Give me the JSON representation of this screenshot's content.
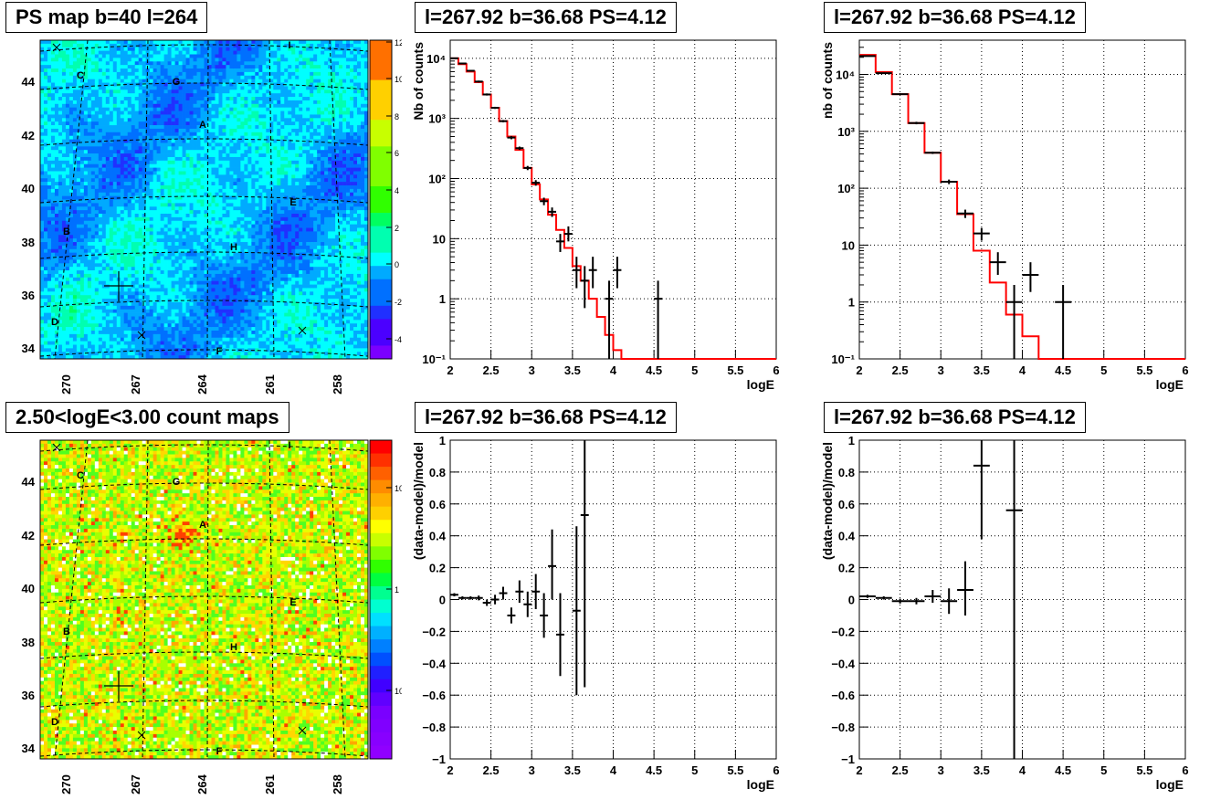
{
  "map_panels": [
    {
      "title": "PS map b=40 l=264",
      "scheme": "ps",
      "xticks": [
        "270",
        "267",
        "264",
        "261",
        "258"
      ],
      "yticks": [
        "44",
        "42",
        "40",
        "38",
        "36",
        "34"
      ],
      "colorbar_ticks": [
        "12",
        "10",
        "8",
        "6",
        "4",
        "2",
        "0",
        "-2",
        "-4"
      ],
      "zrange": [
        -5,
        12
      ],
      "labels": [
        "C",
        "G",
        "A",
        "E",
        "B",
        "H",
        "D",
        "F",
        "I"
      ],
      "colors": {
        "background": "#00ffff",
        "hot": "#ff0000"
      }
    },
    {
      "title": "2.50<logE<3.00 count maps",
      "scheme": "count",
      "xticks": [
        "270",
        "267",
        "264",
        "261",
        "258"
      ],
      "yticks": [
        "44",
        "42",
        "40",
        "38",
        "36",
        "34"
      ],
      "colorbar_ticks": [
        "10",
        "1",
        "10⁻¹"
      ],
      "zscale": "log",
      "labels": [
        "C",
        "G",
        "A",
        "E",
        "B",
        "H",
        "D",
        "F",
        "I"
      ],
      "colors": {
        "background": "#ffd700",
        "hot": "#ff0000"
      }
    }
  ],
  "chart_data": [
    {
      "type": "line",
      "panel": "spectrum-fine",
      "title": "l=267.92 b=36.68 PS=4.12",
      "xlabel": "logE",
      "ylabel": "Nb of counts",
      "xlim": [
        2,
        6
      ],
      "ylim": [
        0.1,
        20000
      ],
      "yscale": "log",
      "xticks": [
        "2",
        "2.5",
        "3",
        "3.5",
        "4",
        "4.5",
        "5",
        "5.5",
        "6"
      ],
      "yticks": [
        "10⁻¹",
        "1",
        "10",
        "10²",
        "10³",
        "10⁴"
      ],
      "grid": true,
      "model_step": {
        "edges": [
          2.0,
          2.1,
          2.2,
          2.3,
          2.4,
          2.5,
          2.6,
          2.7,
          2.8,
          2.9,
          3.0,
          3.1,
          3.2,
          3.3,
          3.4,
          3.5,
          3.6,
          3.7,
          3.8,
          3.9,
          4.0,
          4.1,
          4.2,
          6.0
        ],
        "values": [
          10000,
          8000,
          6000,
          4000,
          2500,
          1500,
          900,
          500,
          300,
          150,
          80,
          45,
          25,
          14,
          7,
          3.5,
          2,
          1,
          0.5,
          0.25,
          0.14,
          0.1,
          0.1
        ]
      },
      "data_points": [
        {
          "x": 2.05,
          "y": 10000,
          "ylo": 9800,
          "yhi": 10200
        },
        {
          "x": 2.15,
          "y": 8200,
          "ylo": 8000,
          "yhi": 8400
        },
        {
          "x": 2.25,
          "y": 6200,
          "ylo": 6000,
          "yhi": 6400
        },
        {
          "x": 2.35,
          "y": 4100,
          "ylo": 3950,
          "yhi": 4250
        },
        {
          "x": 2.45,
          "y": 2500,
          "ylo": 2400,
          "yhi": 2600
        },
        {
          "x": 2.55,
          "y": 1500,
          "ylo": 1440,
          "yhi": 1560
        },
        {
          "x": 2.65,
          "y": 900,
          "ylo": 860,
          "yhi": 940
        },
        {
          "x": 2.75,
          "y": 480,
          "ylo": 450,
          "yhi": 510
        },
        {
          "x": 2.85,
          "y": 320,
          "ylo": 300,
          "yhi": 340
        },
        {
          "x": 2.95,
          "y": 150,
          "ylo": 138,
          "yhi": 162
        },
        {
          "x": 3.05,
          "y": 85,
          "ylo": 76,
          "yhi": 94
        },
        {
          "x": 3.15,
          "y": 42,
          "ylo": 36,
          "yhi": 48
        },
        {
          "x": 3.25,
          "y": 28,
          "ylo": 23,
          "yhi": 33
        },
        {
          "x": 3.35,
          "y": 9,
          "ylo": 6,
          "yhi": 12
        },
        {
          "x": 3.45,
          "y": 12,
          "ylo": 9,
          "yhi": 16
        },
        {
          "x": 3.55,
          "y": 3,
          "ylo": 1.5,
          "yhi": 5
        },
        {
          "x": 3.65,
          "y": 2,
          "ylo": 0.7,
          "yhi": 3.5
        },
        {
          "x": 3.75,
          "y": 3,
          "ylo": 1.5,
          "yhi": 5
        },
        {
          "x": 3.95,
          "y": 1,
          "ylo": 0.1,
          "yhi": 2
        },
        {
          "x": 4.05,
          "y": 3,
          "ylo": 1.5,
          "yhi": 5
        },
        {
          "x": 4.55,
          "y": 1,
          "ylo": 0.1,
          "yhi": 2
        }
      ]
    },
    {
      "type": "line",
      "panel": "spectrum-coarse",
      "title": "l=267.92 b=36.68 PS=4.12",
      "xlabel": "logE",
      "ylabel": "nb of counts",
      "xlim": [
        2,
        6
      ],
      "ylim": [
        0.1,
        40000
      ],
      "yscale": "log",
      "xticks": [
        "2",
        "2.5",
        "3",
        "3.5",
        "4",
        "4.5",
        "5",
        "5.5",
        "6"
      ],
      "yticks": [
        "10⁻¹",
        "1",
        "10",
        "10²",
        "10³",
        "10⁴"
      ],
      "grid": true,
      "model_step": {
        "edges": [
          2.0,
          2.2,
          2.4,
          2.6,
          2.8,
          3.0,
          3.2,
          3.4,
          3.6,
          3.8,
          4.0,
          4.2,
          6.0
        ],
        "values": [
          22000,
          11000,
          4500,
          1400,
          420,
          130,
          35,
          8,
          2.2,
          0.6,
          0.25,
          0.1
        ]
      },
      "data_points": [
        {
          "x": 2.1,
          "y": 21000,
          "ylo": 20700,
          "yhi": 21300
        },
        {
          "x": 2.3,
          "y": 10500,
          "ylo": 10300,
          "yhi": 10700
        },
        {
          "x": 2.5,
          "y": 4500,
          "ylo": 4350,
          "yhi": 4650
        },
        {
          "x": 2.7,
          "y": 1400,
          "ylo": 1330,
          "yhi": 1470
        },
        {
          "x": 2.9,
          "y": 420,
          "ylo": 400,
          "yhi": 440
        },
        {
          "x": 3.1,
          "y": 130,
          "ylo": 118,
          "yhi": 142
        },
        {
          "x": 3.3,
          "y": 36,
          "ylo": 30,
          "yhi": 42
        },
        {
          "x": 3.5,
          "y": 16,
          "ylo": 12,
          "yhi": 20
        },
        {
          "x": 3.7,
          "y": 5,
          "ylo": 3,
          "yhi": 7.5
        },
        {
          "x": 3.9,
          "y": 1,
          "ylo": 0.1,
          "yhi": 2
        },
        {
          "x": 4.1,
          "y": 3,
          "ylo": 1.5,
          "yhi": 5
        },
        {
          "x": 4.5,
          "y": 1,
          "ylo": 0.1,
          "yhi": 2
        }
      ]
    },
    {
      "type": "scatter",
      "panel": "residual-fine",
      "title": "l=267.92 b=36.68 PS=4.12",
      "xlabel": "logE",
      "ylabel": "(data-model)/model",
      "xlim": [
        2,
        6
      ],
      "ylim": [
        -1,
        1
      ],
      "xticks": [
        "2",
        "2.5",
        "3",
        "3.5",
        "4",
        "4.5",
        "5",
        "5.5",
        "6"
      ],
      "yticks": [
        "−1",
        "−0.8",
        "−0.6",
        "−0.4",
        "−0.2",
        "0",
        "0.2",
        "0.4",
        "0.6",
        "0.8",
        "1"
      ],
      "grid": true,
      "data_points": [
        {
          "x": 2.05,
          "y": 0.03,
          "ylo": 0.02,
          "yhi": 0.04
        },
        {
          "x": 2.15,
          "y": 0.01,
          "ylo": 0.0,
          "yhi": 0.02
        },
        {
          "x": 2.25,
          "y": 0.01,
          "ylo": 0.0,
          "yhi": 0.02
        },
        {
          "x": 2.35,
          "y": 0.01,
          "ylo": -0.005,
          "yhi": 0.025
        },
        {
          "x": 2.45,
          "y": -0.02,
          "ylo": -0.04,
          "yhi": 0.0
        },
        {
          "x": 2.55,
          "y": 0.0,
          "ylo": -0.03,
          "yhi": 0.03
        },
        {
          "x": 2.65,
          "y": 0.04,
          "ylo": 0.0,
          "yhi": 0.08
        },
        {
          "x": 2.75,
          "y": -0.1,
          "ylo": -0.15,
          "yhi": -0.05
        },
        {
          "x": 2.85,
          "y": 0.05,
          "ylo": -0.02,
          "yhi": 0.12
        },
        {
          "x": 2.95,
          "y": -0.03,
          "ylo": -0.11,
          "yhi": 0.05
        },
        {
          "x": 3.05,
          "y": 0.05,
          "ylo": -0.06,
          "yhi": 0.16
        },
        {
          "x": 3.15,
          "y": -0.1,
          "ylo": -0.24,
          "yhi": 0.04
        },
        {
          "x": 3.25,
          "y": 0.21,
          "ylo": 0.0,
          "yhi": 0.44
        },
        {
          "x": 3.35,
          "y": -0.22,
          "ylo": -0.48,
          "yhi": 0.04
        },
        {
          "x": 3.55,
          "y": -0.07,
          "ylo": -0.6,
          "yhi": 0.46
        },
        {
          "x": 3.65,
          "y": 0.53,
          "ylo": -0.55,
          "yhi": 1.0
        }
      ]
    },
    {
      "type": "scatter",
      "panel": "residual-coarse",
      "title": "l=267.92 b=36.68 PS=4.12",
      "xlabel": "logE",
      "ylabel": "(data-model)/model",
      "xlim": [
        2,
        6
      ],
      "ylim": [
        -1,
        1
      ],
      "xticks": [
        "2",
        "2.5",
        "3",
        "3.5",
        "4",
        "4.5",
        "5",
        "5.5",
        "6"
      ],
      "yticks": [
        "−1",
        "−0.8",
        "−0.6",
        "−0.4",
        "−0.2",
        "0",
        "0.2",
        "0.4",
        "0.6",
        "0.8",
        "1"
      ],
      "grid": true,
      "data_points": [
        {
          "x": 2.1,
          "y": 0.02,
          "ylo": 0.01,
          "yhi": 0.03
        },
        {
          "x": 2.3,
          "y": 0.01,
          "ylo": 0.0,
          "yhi": 0.02
        },
        {
          "x": 2.5,
          "y": -0.01,
          "ylo": -0.025,
          "yhi": 0.005
        },
        {
          "x": 2.7,
          "y": -0.01,
          "ylo": -0.03,
          "yhi": 0.01
        },
        {
          "x": 2.9,
          "y": 0.02,
          "ylo": -0.02,
          "yhi": 0.06
        },
        {
          "x": 3.1,
          "y": -0.01,
          "ylo": -0.09,
          "yhi": 0.07
        },
        {
          "x": 3.3,
          "y": 0.06,
          "ylo": -0.1,
          "yhi": 0.24
        },
        {
          "x": 3.5,
          "y": 0.84,
          "ylo": 0.38,
          "yhi": 1.0
        },
        {
          "x": 3.9,
          "y": 0.56,
          "ylo": -1.0,
          "yhi": 1.0
        }
      ]
    }
  ]
}
